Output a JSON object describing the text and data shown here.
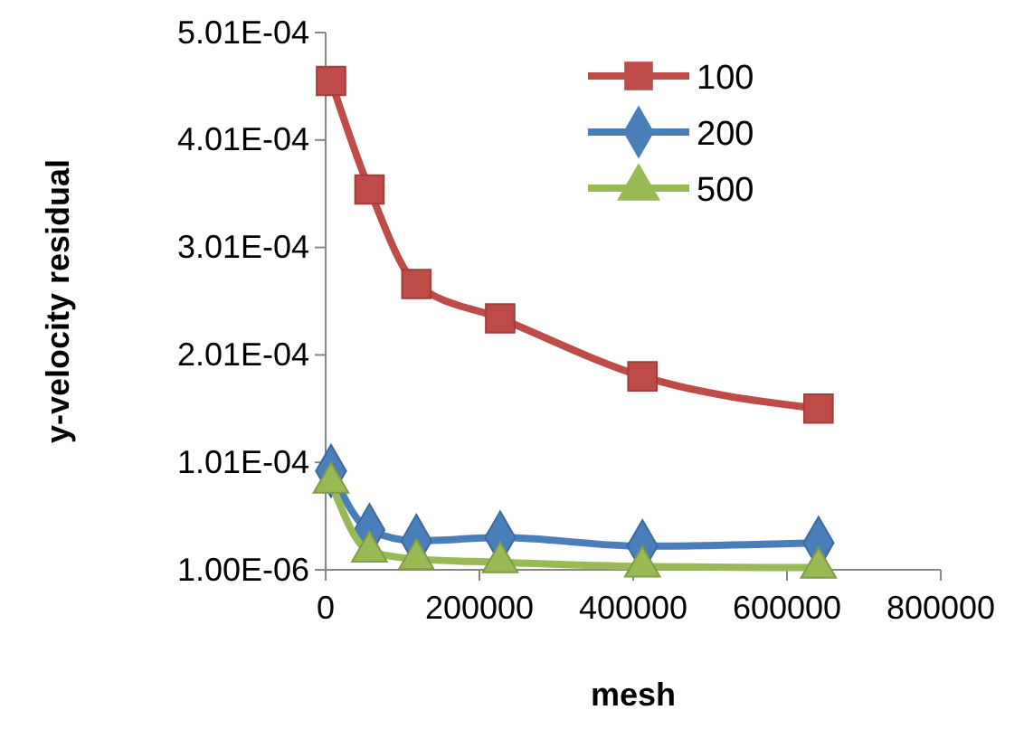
{
  "chart_data": {
    "type": "line",
    "xlabel": "mesh",
    "ylabel": "y-velocity residual",
    "xlim": [
      0,
      800000
    ],
    "xticks": [
      0,
      200000,
      400000,
      600000,
      800000
    ],
    "ylim": [
      1e-06,
      0.000501
    ],
    "yticks": [
      {
        "value": 1e-06,
        "label": "1.00E-06"
      },
      {
        "value": 0.000101,
        "label": "1.01E-04"
      },
      {
        "value": 0.000201,
        "label": "2.01E-04"
      },
      {
        "value": 0.000301,
        "label": "3.01E-04"
      },
      {
        "value": 0.000401,
        "label": "4.01E-04"
      },
      {
        "value": 0.000501,
        "label": "5.01E-04"
      }
    ],
    "x": [
      7000,
      57000,
      118000,
      227000,
      412000,
      641000
    ],
    "series": [
      {
        "name": "100",
        "color": "#be4b48",
        "marker": "square",
        "values": [
          0.000456,
          0.000355,
          0.000267,
          0.000235,
          0.000181,
          0.000151
        ]
      },
      {
        "name": "200",
        "color": "#4a7ebb",
        "marker": "diamond",
        "values": [
          9.3e-05,
          3.8e-05,
          2.8e-05,
          3.1e-05,
          2.3e-05,
          2.6e-05
        ]
      },
      {
        "name": "500",
        "color": "#98b954",
        "marker": "triangle",
        "values": [
          8.2e-05,
          1.8e-05,
          1.1e-05,
          8e-06,
          4e-06,
          3e-06
        ]
      }
    ],
    "legend": "top right",
    "grid": false
  }
}
